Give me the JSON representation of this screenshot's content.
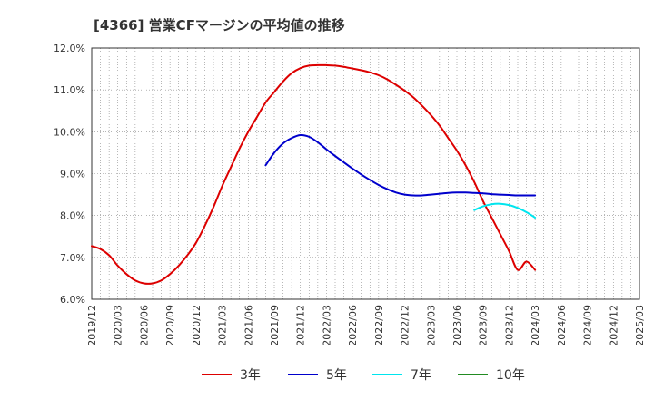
{
  "chart_data": {
    "type": "line",
    "title": "[4366]  営業CFマージンの平均値の推移",
    "xlabel": "",
    "ylabel": "",
    "ylim": [
      6.0,
      12.0
    ],
    "y_ticks": [
      "6.0%",
      "7.0%",
      "8.0%",
      "9.0%",
      "10.0%",
      "11.0%",
      "12.0%"
    ],
    "x_ticks": [
      "2019/12",
      "2020/03",
      "2020/06",
      "2020/09",
      "2020/12",
      "2021/03",
      "2021/06",
      "2021/09",
      "2021/12",
      "2022/03",
      "2022/06",
      "2022/09",
      "2022/12",
      "2023/03",
      "2023/06",
      "2023/09",
      "2023/12",
      "2024/03",
      "2024/06",
      "2024/09",
      "2024/12",
      "2025/03"
    ],
    "grid": true,
    "legend_position": "bottom",
    "series": [
      {
        "name": "3年",
        "color": "#dd0000",
        "x": [
          "2019/12",
          "2020/01",
          "2020/02",
          "2020/03",
          "2020/04",
          "2020/05",
          "2020/06",
          "2020/07",
          "2020/08",
          "2020/09",
          "2020/10",
          "2020/11",
          "2020/12",
          "2021/01",
          "2021/02",
          "2021/03",
          "2021/04",
          "2021/05",
          "2021/06",
          "2021/07",
          "2021/08",
          "2021/09",
          "2021/10",
          "2021/11",
          "2021/12",
          "2022/01",
          "2022/02",
          "2022/03",
          "2022/04",
          "2022/05",
          "2022/06",
          "2022/07",
          "2022/08",
          "2022/09",
          "2022/10",
          "2022/11",
          "2022/12",
          "2023/01",
          "2023/02",
          "2023/03",
          "2023/04",
          "2023/05",
          "2023/06",
          "2023/07",
          "2023/08",
          "2023/09",
          "2023/10",
          "2023/11",
          "2023/12",
          "2024/01",
          "2024/02",
          "2024/03"
        ],
        "values": [
          7.27,
          7.2,
          7.05,
          6.8,
          6.6,
          6.45,
          6.38,
          6.38,
          6.45,
          6.6,
          6.8,
          7.05,
          7.35,
          7.75,
          8.2,
          8.7,
          9.15,
          9.6,
          10.0,
          10.35,
          10.7,
          10.95,
          11.2,
          11.4,
          11.52,
          11.58,
          11.59,
          11.59,
          11.58,
          11.55,
          11.51,
          11.47,
          11.42,
          11.35,
          11.25,
          11.12,
          10.98,
          10.82,
          10.62,
          10.4,
          10.15,
          9.85,
          9.55,
          9.2,
          8.8,
          8.35,
          7.95,
          7.55,
          7.15,
          6.7,
          6.9,
          6.7
        ],
        "smooth": true
      },
      {
        "name": "5年",
        "color": "#0000cc",
        "x": [
          "2021/08",
          "2021/09",
          "2021/10",
          "2021/11",
          "2021/12",
          "2022/01",
          "2022/02",
          "2022/03",
          "2022/04",
          "2022/05",
          "2022/06",
          "2022/07",
          "2022/08",
          "2022/09",
          "2022/10",
          "2022/11",
          "2022/12",
          "2023/01",
          "2023/02",
          "2023/03",
          "2023/04",
          "2023/05",
          "2023/06",
          "2023/07",
          "2023/08",
          "2023/09",
          "2023/10",
          "2023/11",
          "2023/12",
          "2024/01",
          "2024/02",
          "2024/03"
        ],
        "values": [
          9.2,
          9.5,
          9.72,
          9.85,
          9.92,
          9.88,
          9.75,
          9.58,
          9.42,
          9.27,
          9.12,
          8.98,
          8.85,
          8.73,
          8.63,
          8.55,
          8.5,
          8.48,
          8.48,
          8.5,
          8.52,
          8.54,
          8.55,
          8.55,
          8.54,
          8.53,
          8.51,
          8.5,
          8.49,
          8.48,
          8.48,
          8.48
        ],
        "smooth": true
      },
      {
        "name": "7年",
        "color": "#00e5ee",
        "x": [
          "2023/08",
          "2023/09",
          "2023/10",
          "2023/11",
          "2023/12",
          "2024/01",
          "2024/02",
          "2024/03"
        ],
        "values": [
          8.13,
          8.22,
          8.27,
          8.28,
          8.25,
          8.18,
          8.08,
          7.95
        ],
        "smooth": true
      },
      {
        "name": "10年",
        "color": "#228b22",
        "x": [],
        "values": []
      }
    ]
  }
}
